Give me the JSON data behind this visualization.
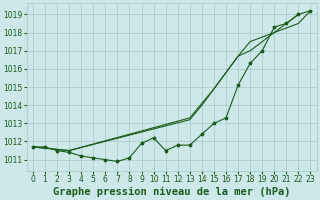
{
  "title": "Graphe pression niveau de la mer (hPa)",
  "bg_color": "#cce8e8",
  "grid_color": "#a8c8c8",
  "line_color": "#1a5c1a",
  "xlim": [
    -0.5,
    23.5
  ],
  "ylim": [
    1010.4,
    1019.6
  ],
  "yticks": [
    1011,
    1012,
    1013,
    1014,
    1015,
    1016,
    1017,
    1018,
    1019
  ],
  "xticks": [
    0,
    1,
    2,
    3,
    4,
    5,
    6,
    7,
    8,
    9,
    10,
    11,
    12,
    13,
    14,
    15,
    16,
    17,
    18,
    19,
    20,
    21,
    22,
    23
  ],
  "hours": [
    0,
    1,
    2,
    3,
    4,
    5,
    6,
    7,
    8,
    9,
    10,
    11,
    12,
    13,
    14,
    15,
    16,
    17,
    18,
    19,
    20,
    21,
    22,
    23
  ],
  "line1": [
    1011.7,
    1011.7,
    1011.5,
    1011.4,
    1011.2,
    1011.1,
    1011.0,
    1010.9,
    1011.1,
    1011.9,
    1012.2,
    1011.5,
    1011.8,
    1011.8,
    1012.4,
    1013.0,
    1013.3,
    1015.1,
    1016.3,
    1017.0,
    1018.3,
    1018.5,
    1019.0,
    1019.2
  ],
  "line2_x": [
    0,
    3,
    13,
    14,
    15,
    16,
    17,
    18,
    22
  ],
  "line2_y": [
    1011.7,
    1011.5,
    1013.2,
    1014.0,
    1014.9,
    1015.8,
    1016.7,
    1017.0,
    1019.0
  ],
  "line3_x": [
    0,
    3,
    13,
    14,
    15,
    16,
    17,
    18,
    22,
    23
  ],
  "line3_y": [
    1011.7,
    1011.5,
    1013.3,
    1014.1,
    1014.9,
    1015.8,
    1016.7,
    1017.5,
    1018.5,
    1019.2
  ],
  "title_fontsize": 7.5,
  "tick_fontsize": 5.5,
  "ylabel_fontsize": 6
}
